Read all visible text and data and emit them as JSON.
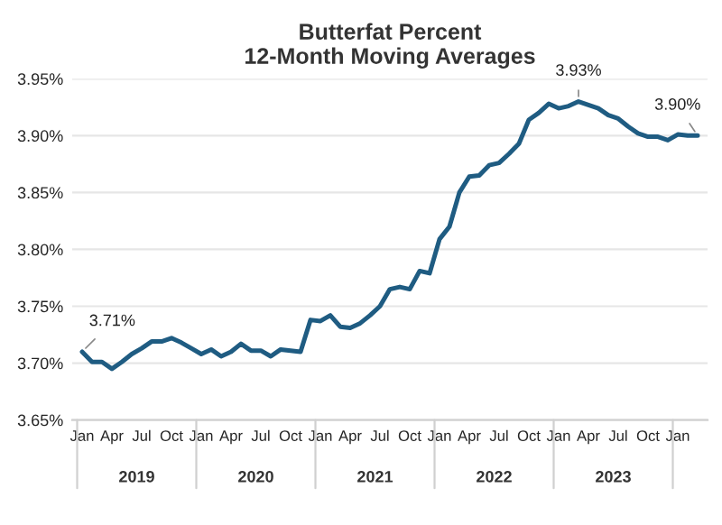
{
  "chart_data": {
    "type": "line",
    "title": "Butterfat Percent\n12-Month Moving Averages",
    "categories": [
      "Jan",
      null,
      null,
      "Apr",
      null,
      null,
      "Jul",
      null,
      null,
      "Oct",
      null,
      null,
      "Jan",
      null,
      null,
      "Apr",
      null,
      null,
      "Jul",
      null,
      null,
      "Oct",
      null,
      null,
      "Jan",
      null,
      null,
      "Apr",
      null,
      null,
      "Jul",
      null,
      null,
      "Oct",
      null,
      null,
      "Jan",
      null,
      null,
      "Apr",
      null,
      null,
      "Jul",
      null,
      null,
      "Oct",
      null,
      null,
      "Jan",
      null,
      null,
      "Apr",
      null,
      null,
      "Jul",
      null,
      null,
      "Oct",
      null,
      null,
      "Jan",
      null,
      null
    ],
    "series": [
      {
        "color": "#1f5c82",
        "values": [
          3.71,
          3.701,
          3.701,
          3.695,
          3.701,
          3.708,
          3.713,
          3.719,
          3.719,
          3.722,
          3.718,
          3.713,
          3.708,
          3.712,
          3.706,
          3.71,
          3.717,
          3.711,
          3.711,
          3.706,
          3.712,
          3.711,
          3.71,
          3.738,
          3.737,
          3.742,
          3.732,
          3.731,
          3.735,
          3.742,
          3.75,
          3.765,
          3.767,
          3.765,
          3.781,
          3.779,
          3.809,
          3.82,
          3.85,
          3.864,
          3.865,
          3.874,
          3.876,
          3.884,
          3.893,
          3.914,
          3.92,
          3.928,
          3.924,
          3.926,
          3.93,
          3.927,
          3.924,
          3.918,
          3.915,
          3.908,
          3.902,
          3.899,
          3.899,
          3.896,
          3.901,
          3.9,
          3.9
        ],
        "value_labels": [
          "3.71%",
          null,
          null,
          null,
          null,
          null,
          null,
          null,
          null,
          null,
          null,
          null,
          null,
          null,
          null,
          null,
          null,
          null,
          null,
          null,
          null,
          null,
          null,
          null,
          null,
          null,
          null,
          null,
          null,
          null,
          null,
          null,
          null,
          null,
          null,
          null,
          null,
          null,
          null,
          null,
          null,
          null,
          null,
          null,
          null,
          null,
          null,
          null,
          null,
          null,
          "3.93%",
          null,
          null,
          null,
          null,
          null,
          null,
          null,
          null,
          null,
          null,
          null,
          "3.90%"
        ]
      }
    ],
    "annotations": [
      "2019",
      "2020",
      "2021",
      "2022",
      "2023"
    ],
    "ylim": [
      3.65,
      3.95
    ],
    "yticks": [
      {
        "value": 3.65,
        "label": "3.65%"
      },
      {
        "value": 3.7,
        "label": "3.70%"
      },
      {
        "value": 3.75,
        "label": "3.75%"
      },
      {
        "value": 3.8,
        "label": "3.80%"
      },
      {
        "value": 3.85,
        "label": "3.85%"
      },
      {
        "value": 3.9,
        "label": "3.90%"
      },
      {
        "value": 3.95,
        "label": "3.95%"
      }
    ],
    "grid": "y",
    "marker": "none",
    "line_style": "solid"
  }
}
